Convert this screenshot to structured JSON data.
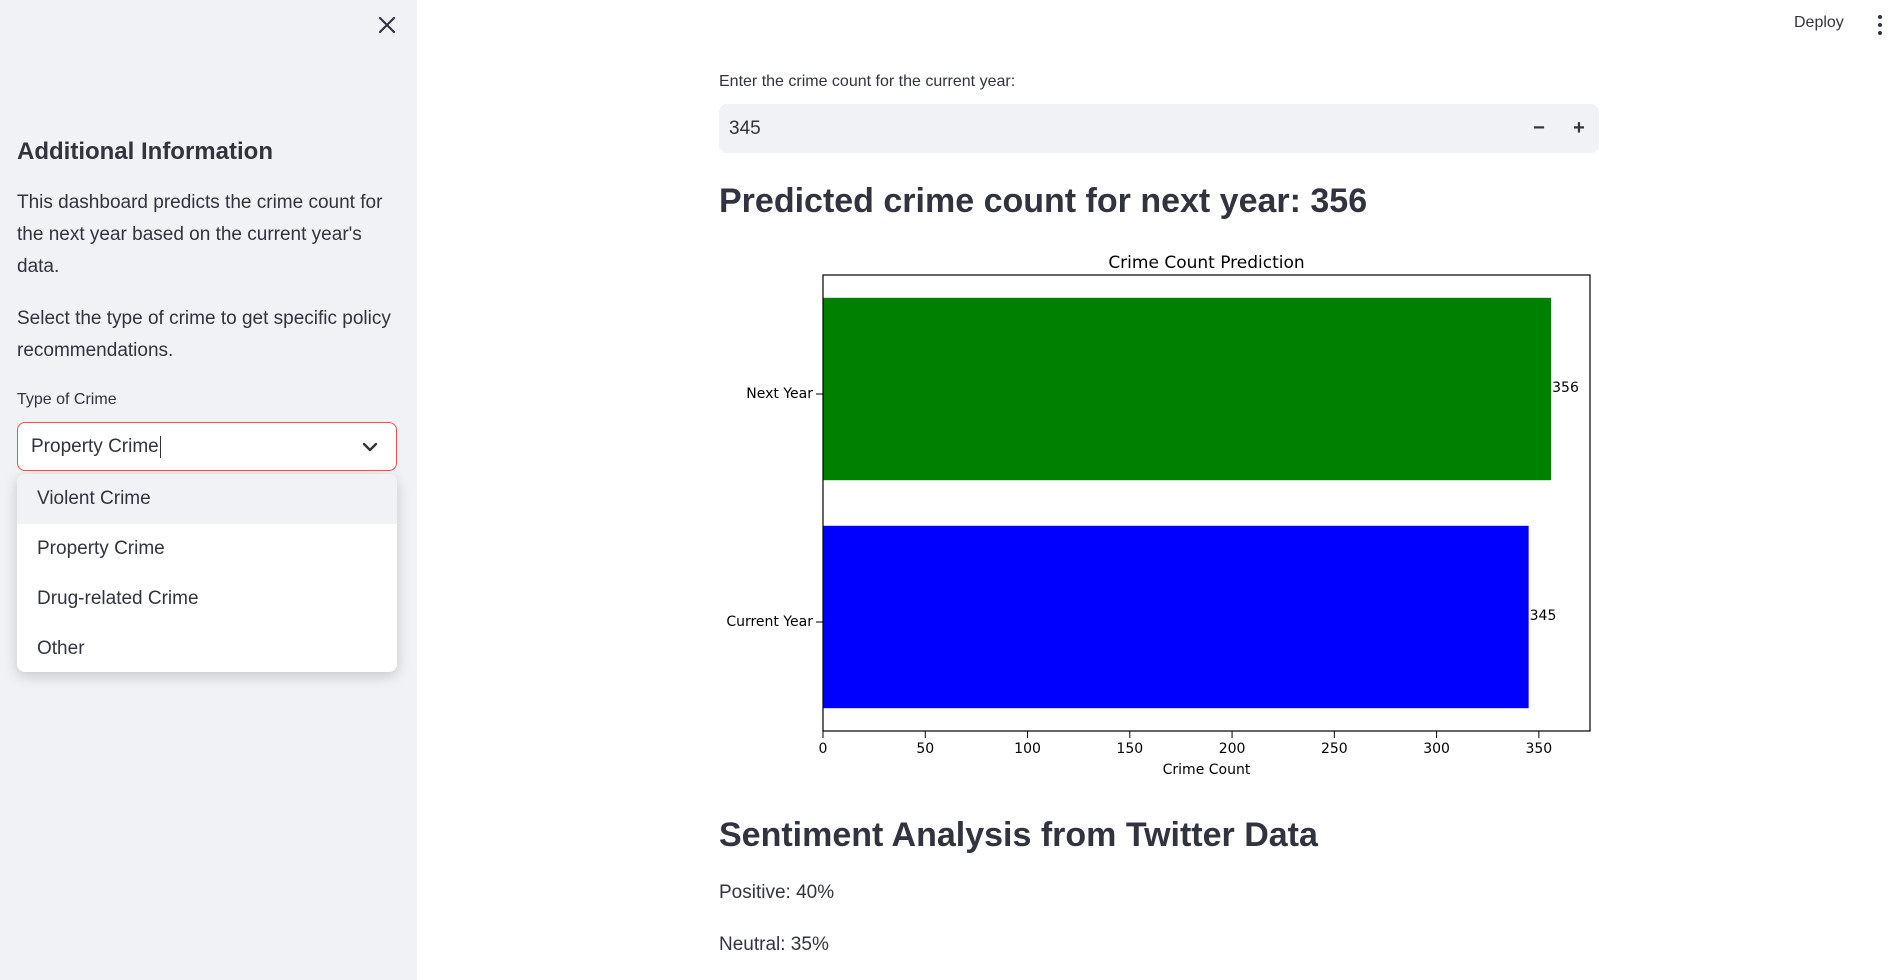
{
  "sidebar": {
    "heading": "Additional Information",
    "paragraph_1": "This dashboard predicts the crime count for the next year based on the current year's data.",
    "paragraph_2": "Select the type of crime to get specific policy recommendations.",
    "crime_type_label": "Type of Crime",
    "crime_type_value": "Property Crime",
    "crime_type_options": [
      "Violent Crime",
      "Property Crime",
      "Drug-related Crime",
      "Other"
    ],
    "close_icon": "close-icon"
  },
  "header": {
    "deploy_label": "Deploy",
    "menu_icon": "vertical-dots-icon"
  },
  "main": {
    "input_label": "Enter the crime count for the current year:",
    "input_value": "345",
    "decrement_label": "−",
    "increment_label": "+",
    "prediction_heading": "Predicted crime count for next year: 356",
    "sentiment_heading": "Sentiment Analysis from Twitter Data",
    "sentiment_positive": "Positive: 40%",
    "sentiment_neutral": "Neutral: 35%"
  },
  "chart_data": {
    "type": "bar",
    "orientation": "horizontal",
    "title": "Crime Count Prediction",
    "xlabel": "Crime Count",
    "ylabel": "",
    "categories": [
      "Current Year",
      "Next Year"
    ],
    "values": [
      345,
      356
    ],
    "data_labels": [
      "345",
      "356"
    ],
    "colors": [
      "#0000ff",
      "#008000"
    ],
    "xlim": [
      0,
      375
    ],
    "xticks": [
      0,
      50,
      100,
      150,
      200,
      250,
      300,
      350
    ],
    "grid": false
  },
  "colors": {
    "accent": "#ff4b4b",
    "sidebar_bg": "#f0f2f6",
    "text": "#31333f"
  }
}
